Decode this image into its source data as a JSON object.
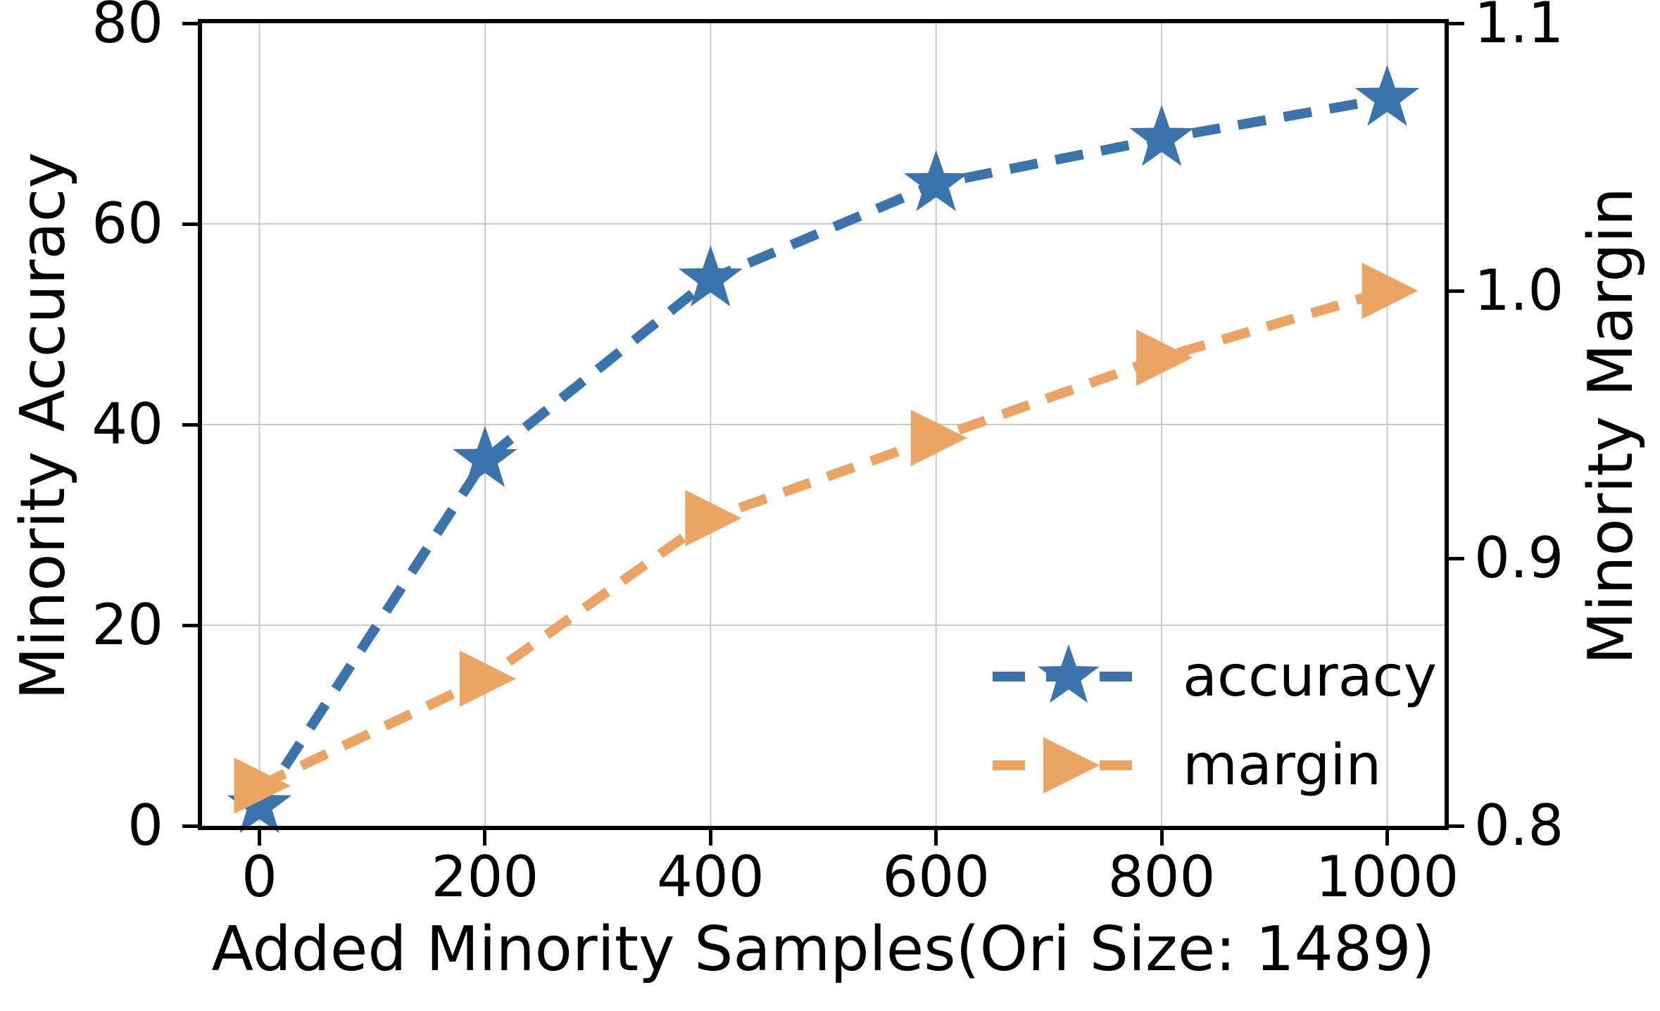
{
  "chart_data": {
    "type": "line",
    "x": [
      0,
      200,
      400,
      600,
      800,
      1000
    ],
    "series": [
      {
        "name": "accuracy",
        "axis": "left",
        "marker": "star",
        "line_style": "dashed",
        "color": "#3b74ad",
        "values": [
          2,
          36.5,
          54.5,
          64,
          68.5,
          72.5
        ]
      },
      {
        "name": "margin",
        "axis": "right",
        "marker": "triangle-right",
        "line_style": "dashed",
        "color": "#eca465",
        "values": [
          0.815,
          0.855,
          0.915,
          0.945,
          0.975,
          1.0
        ]
      }
    ],
    "title": "",
    "xlabel": "Added Minority Samples(Ori Size: 1489)",
    "ylabel_left": "Minority Accuracy",
    "ylabel_right": "Minority Margin",
    "x_ticks": [
      "0",
      "200",
      "400",
      "600",
      "800",
      "1000"
    ],
    "y_ticks_left": [
      "0",
      "20",
      "40",
      "60",
      "80"
    ],
    "y_ticks_right": [
      "0.8",
      "0.9",
      "1.0",
      "1.1"
    ],
    "xlim": [
      0,
      1000
    ],
    "ylim_left": [
      0,
      80
    ],
    "ylim_right": [
      0.8,
      1.1
    ],
    "grid": true,
    "legend": {
      "position": "lower right",
      "entries": [
        "accuracy",
        "margin"
      ]
    }
  },
  "colors": {
    "accuracy_line": "#3b74ad",
    "margin_line": "#eca465",
    "gridline": "#c9c9c9",
    "axis": "#000000",
    "background": "#ffffff"
  }
}
